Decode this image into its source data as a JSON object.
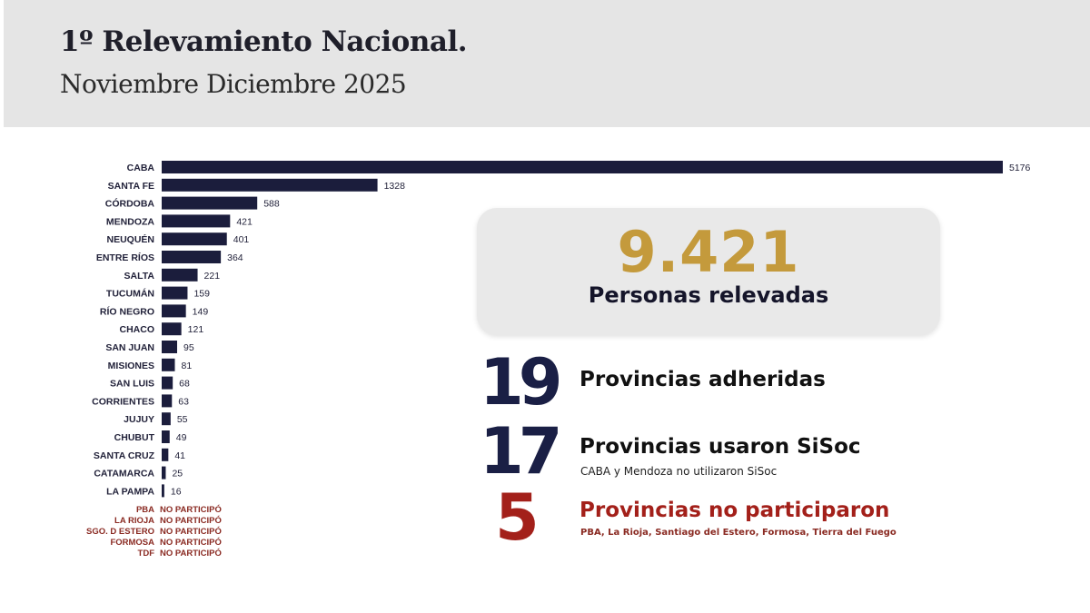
{
  "header": {
    "title": "1º Relevamiento Nacional.",
    "subtitle": "Noviembre Diciembre 2025"
  },
  "chart_data": {
    "type": "bar",
    "orientation": "horizontal",
    "categories": [
      "CABA",
      "SANTA FE",
      "CÓRDOBA",
      "MENDOZA",
      "NEUQUÉN",
      "ENTRE RÍOS",
      "SALTA",
      "TUCUMÁN",
      "RÍO NEGRO",
      "CHACO",
      "SAN JUAN",
      "MISIONES",
      "SAN LUIS",
      "CORRIENTES",
      "JUJUY",
      "CHUBUT",
      "SANTA CRUZ",
      "CATAMARCA",
      "LA PAMPA"
    ],
    "values": [
      5176,
      1328,
      588,
      421,
      401,
      364,
      221,
      159,
      149,
      121,
      95,
      81,
      68,
      63,
      55,
      49,
      41,
      25,
      16
    ],
    "bar_color": "#1b1d3c",
    "not_participating": {
      "label": "NO PARTICIPÓ",
      "provinces": [
        "PBA",
        "LA RIOJA",
        "SGO. D ESTERO",
        "FORMOSA",
        "TDF"
      ],
      "color": "#8a2a22"
    }
  },
  "summary": {
    "total": "9.421",
    "total_label": "Personas relevadas",
    "stats": [
      {
        "number": "19",
        "label": "Provincias adheridas",
        "note": ""
      },
      {
        "number": "17",
        "label": "Provincias usaron SiSoc",
        "note": "CABA y Mendoza no utilizaron SiSoc"
      },
      {
        "number": "5",
        "label": "Provincias no participaron",
        "note": "PBA, La Rioja, Santiago del Estero, Formosa, Tierra del Fuego"
      }
    ]
  }
}
